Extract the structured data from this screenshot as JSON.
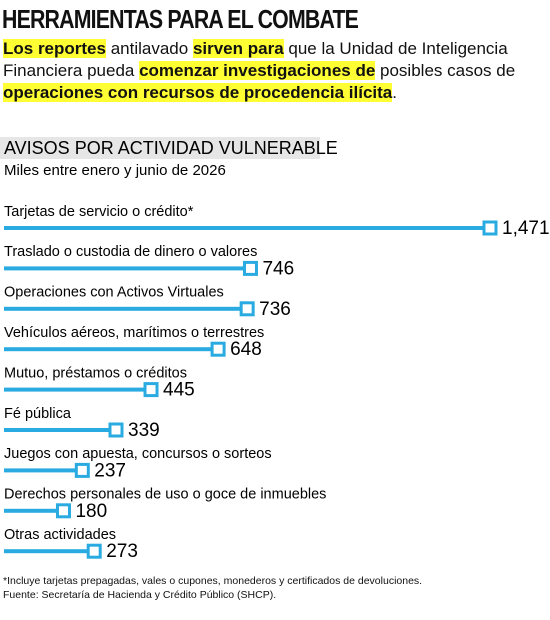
{
  "header": {
    "title": "HERRAMIENTAS PARA EL COMBATE",
    "intro": [
      {
        "text": "Los reportes",
        "highlight": true
      },
      {
        "text": " antilavado ",
        "highlight": false
      },
      {
        "text": "sirven para",
        "highlight": true
      },
      {
        "text": " que la Unidad de Inteligencia Financiera pueda ",
        "highlight": false
      },
      {
        "text": "comenzar investigaciones de",
        "highlight": true
      },
      {
        "text": " posibles casos de ",
        "highlight": false
      },
      {
        "text": "operaciones con recursos de procedencia ilícita",
        "highlight": true
      },
      {
        "text": ".",
        "highlight": false
      }
    ]
  },
  "chart_data": {
    "type": "bar",
    "orientation": "horizontal",
    "title": "AVISOS POR ACTIVIDAD VULNERABLE",
    "subtitle": "Miles entre enero y junio de 2026",
    "categories": [
      "Tarjetas de servicio o crédito*",
      "Traslado o custodia de dinero o valores",
      "Operaciones con Activos Virtuales",
      "Vehículos aéreos, marítimos o terrestres",
      "Mutuo, préstamos o créditos",
      "Fé pública",
      "Juegos con apuesta, concursos o sorteos",
      "Derechos personales de uso o goce de inmuebles",
      "Otras actividades"
    ],
    "values": [
      1471,
      746,
      736,
      648,
      445,
      339,
      237,
      180,
      273
    ],
    "value_labels": [
      "1,471",
      "746",
      "736",
      "648",
      "445",
      "339",
      "237",
      "180",
      "273"
    ],
    "color": "#29abe2"
  },
  "footnotes": [
    "*Incluye tarjetas prepagadas, vales o cupones, monederos y certificados de devoluciones.",
    "Fuente: Secretaría de Hacienda y Crédito Público (SHCP)."
  ]
}
